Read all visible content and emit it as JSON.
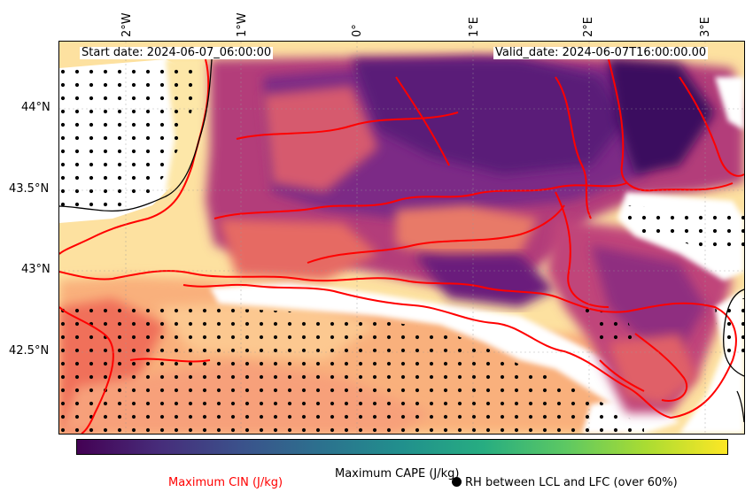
{
  "map": {
    "start_date": "Start date: 2024-06-07_06:00:00",
    "valid_date": "Valid_date: 2024-06-07T16:00:00.00",
    "lon_labels": [
      "2°W",
      "1°W",
      "0°",
      "1°E",
      "2°E",
      "3°E"
    ],
    "lat_labels": [
      "44°N",
      "43.5°N",
      "43°N",
      "42.5°N"
    ],
    "colormap_cape": "viridis",
    "colormap_field": "magma",
    "cin_contour_color": "#ff0000"
  },
  "colorbar": {
    "label": "Maximum CAPE (J/kg)"
  },
  "legend": {
    "cin_label": "Maximum CIN (J/kg)",
    "cin_color": "#ff0000",
    "rh_label": "RH between LCL and LFC (over 60%)"
  }
}
